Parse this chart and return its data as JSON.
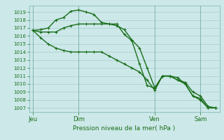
{
  "title": "",
  "xlabel": "Pression niveau de la mer( hPa )",
  "ylabel": "",
  "background_color": "#cce8e8",
  "grid_color": "#aacccc",
  "line_color": "#1a6e1a",
  "ylim": [
    1006.5,
    1019.8
  ],
  "yticks": [
    1007,
    1008,
    1009,
    1010,
    1011,
    1012,
    1013,
    1014,
    1015,
    1016,
    1017,
    1018,
    1019
  ],
  "day_labels": [
    "Jeu",
    "Dim",
    "Ven",
    "Sam"
  ],
  "day_positions": [
    0,
    3,
    11,
    17
  ],
  "series": [
    [
      1016.7,
      1016.8,
      1017.0,
      1018.0,
      1018.3,
      1019.1,
      1019.25,
      1019.0,
      1018.7,
      1017.7,
      1017.5,
      1017.5,
      1016.2,
      1015.4,
      1012.5,
      1009.8,
      1009.5,
      1011.0,
      1011.0,
      1010.8,
      1010.0,
      1008.5,
      1008.2,
      1007.0,
      1007.0
    ],
    [
      1016.7,
      1016.5,
      1016.5,
      1016.5,
      1017.0,
      1017.3,
      1017.5,
      1017.5,
      1017.5,
      1017.5,
      1017.5,
      1017.3,
      1016.8,
      1015.5,
      1014.5,
      1012.0,
      1009.5,
      1011.0,
      1011.0,
      1010.5,
      1010.2,
      1009.0,
      1008.5,
      1007.2,
      1007.0
    ],
    [
      1016.7,
      1015.8,
      1015.0,
      1014.5,
      1014.2,
      1014.0,
      1014.0,
      1014.0,
      1014.0,
      1014.0,
      1013.5,
      1013.0,
      1012.5,
      1012.0,
      1011.5,
      1010.5,
      1009.2,
      1011.0,
      1011.0,
      1010.5,
      1010.0,
      1008.5,
      1008.0,
      1007.0,
      1007.0
    ]
  ],
  "marker": "+",
  "marker_size": 3.5,
  "line_width": 1.0,
  "figsize": [
    3.2,
    2.0
  ],
  "dpi": 100
}
